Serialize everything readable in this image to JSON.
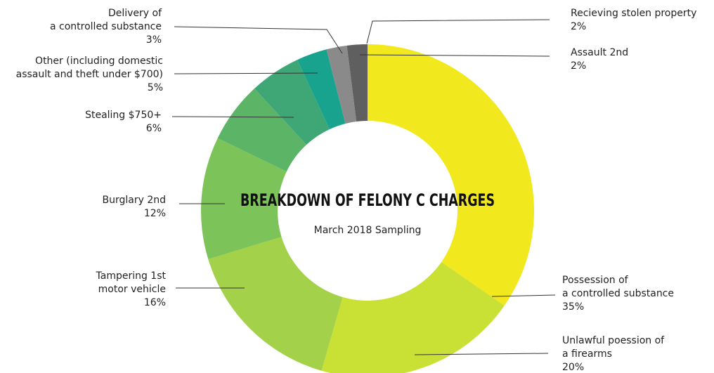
{
  "chart_data": {
    "type": "donut",
    "title": "BREAKDOWN OF FELONY C CHARGES",
    "subtitle": "March 2018 Sampling",
    "categories": [
      "Possession of\na controlled substance",
      "Unlawful poession of\na firearms",
      "Tampering 1st\nmotor vehicle",
      "Burglary 2nd",
      "Stealing $750+",
      "Other (including domestic\nassault and theft under $700)",
      "Delivery of\na controlled substance",
      "Assault 2nd",
      "Recieving stolen property"
    ],
    "values": [
      35,
      20,
      16,
      12,
      6,
      5,
      3,
      2,
      2
    ],
    "value_labels": [
      "35%",
      "20%",
      "16%",
      "12%",
      "6%",
      "5%",
      "3%",
      "2%",
      "2%"
    ],
    "colors": [
      "#f2e81e",
      "#c9e034",
      "#a3d14a",
      "#7cc35a",
      "#5cb567",
      "#3fa676",
      "#17a38d",
      "#8a8a8a",
      "#5f5f5f"
    ]
  }
}
